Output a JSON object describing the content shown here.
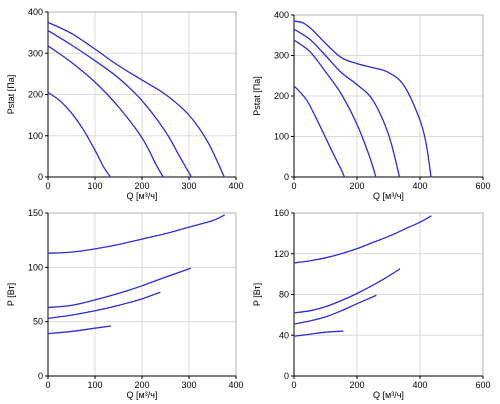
{
  "chart_data": [
    {
      "type": "line",
      "xlabel": "Q [м³/ч]",
      "ylabel": "Pstat [Па]",
      "xlim": [
        0,
        400
      ],
      "ylim": [
        0,
        400
      ],
      "xticks": [
        0,
        100,
        200,
        300,
        400
      ],
      "yticks": [
        0,
        100,
        200,
        300,
        400
      ],
      "grid": true,
      "color": "#2b2bdc",
      "series": [
        {
          "x": [
            0,
            25,
            50,
            75,
            100,
            118,
            133
          ],
          "y": [
            205,
            185,
            155,
            115,
            65,
            25,
            0
          ]
        },
        {
          "x": [
            0,
            50,
            100,
            150,
            200,
            230,
            245
          ],
          "y": [
            318,
            278,
            230,
            170,
            95,
            30,
            0
          ]
        },
        {
          "x": [
            0,
            50,
            100,
            150,
            200,
            250,
            280,
            305
          ],
          "y": [
            355,
            320,
            282,
            240,
            185,
            110,
            50,
            0
          ]
        },
        {
          "x": [
            0,
            50,
            100,
            150,
            200,
            250,
            300,
            340,
            375
          ],
          "y": [
            375,
            348,
            310,
            270,
            235,
            200,
            150,
            85,
            0
          ]
        }
      ]
    },
    {
      "type": "line",
      "xlabel": "Q [м³/ч]",
      "ylabel": "Pstat [Па]",
      "xlim": [
        0,
        600
      ],
      "ylim": [
        0,
        400
      ],
      "xticks": [
        0,
        200,
        400,
        600
      ],
      "yticks": [
        0,
        100,
        200,
        300,
        400
      ],
      "grid": true,
      "color": "#2b2bdc",
      "series": [
        {
          "x": [
            0,
            40,
            80,
            120,
            150,
            160
          ],
          "y": [
            225,
            190,
            130,
            65,
            18,
            0
          ]
        },
        {
          "x": [
            0,
            50,
            100,
            150,
            200,
            240,
            260
          ],
          "y": [
            338,
            310,
            260,
            205,
            130,
            50,
            0
          ]
        },
        {
          "x": [
            0,
            50,
            100,
            150,
            200,
            250,
            300,
            335
          ],
          "y": [
            365,
            340,
            300,
            258,
            228,
            190,
            105,
            0
          ]
        },
        {
          "x": [
            0,
            30,
            60,
            100,
            150,
            200,
            250,
            300,
            350,
            400,
            420,
            435
          ],
          "y": [
            385,
            380,
            362,
            330,
            295,
            280,
            270,
            258,
            225,
            140,
            80,
            0
          ]
        }
      ]
    },
    {
      "type": "line",
      "xlabel": "Q [м³/ч]",
      "ylabel": "P [Вт]",
      "xlim": [
        0,
        400
      ],
      "ylim": [
        0,
        150
      ],
      "xticks": [
        0,
        100,
        200,
        300,
        400
      ],
      "yticks": [
        0,
        50,
        100,
        150
      ],
      "grid": true,
      "color": "#2b2bdc",
      "series": [
        {
          "x": [
            0,
            50,
            100,
            133
          ],
          "y": [
            39,
            41,
            44,
            46
          ]
        },
        {
          "x": [
            0,
            50,
            100,
            150,
            200,
            238
          ],
          "y": [
            53,
            56,
            60,
            65,
            71,
            77
          ]
        },
        {
          "x": [
            0,
            50,
            100,
            150,
            200,
            250,
            303
          ],
          "y": [
            63,
            65,
            70,
            76,
            83,
            91,
            99
          ]
        },
        {
          "x": [
            0,
            50,
            100,
            150,
            200,
            250,
            300,
            350,
            375
          ],
          "y": [
            113,
            114,
            117,
            121,
            126,
            131,
            137,
            143,
            148
          ]
        }
      ]
    },
    {
      "type": "line",
      "xlabel": "Q [м³/ч]",
      "ylabel": "P [Вт]",
      "xlim": [
        0,
        600
      ],
      "ylim": [
        0,
        160
      ],
      "xticks": [
        0,
        200,
        400,
        600
      ],
      "yticks": [
        0,
        40,
        80,
        120,
        160
      ],
      "grid": true,
      "color": "#2b2bdc",
      "series": [
        {
          "x": [
            0,
            50,
            100,
            155
          ],
          "y": [
            39,
            41,
            43,
            44
          ]
        },
        {
          "x": [
            0,
            50,
            100,
            150,
            200,
            260
          ],
          "y": [
            51,
            54,
            58,
            64,
            71,
            79
          ]
        },
        {
          "x": [
            0,
            50,
            100,
            150,
            200,
            250,
            300,
            335
          ],
          "y": [
            62,
            64,
            68,
            74,
            81,
            89,
            98,
            105
          ]
        },
        {
          "x": [
            0,
            50,
            100,
            150,
            200,
            250,
            300,
            350,
            400,
            435
          ],
          "y": [
            111,
            113,
            116,
            120,
            125,
            131,
            137,
            144,
            151,
            157
          ]
        }
      ]
    }
  ]
}
